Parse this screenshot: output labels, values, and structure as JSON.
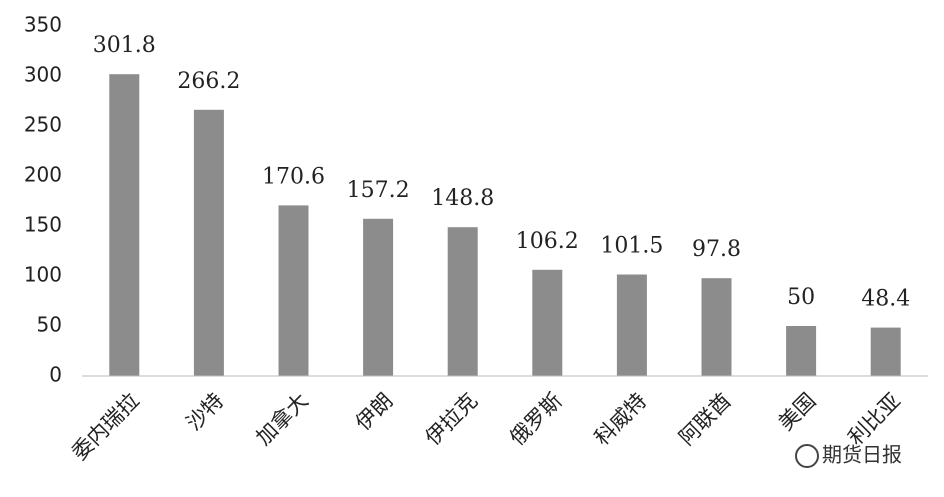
{
  "chart_data": {
    "type": "bar",
    "categories": [
      "委内瑞拉",
      "沙特",
      "加拿大",
      "伊朗",
      "伊拉克",
      "俄罗斯",
      "科威特",
      "阿联酋",
      "美国",
      "利比亚"
    ],
    "values": [
      301.8,
      266.2,
      170.6,
      157.2,
      148.8,
      106.2,
      101.5,
      97.8,
      50,
      48.4
    ],
    "color": "#8c8c8c",
    "ylim": [
      0,
      350
    ],
    "yticks": [
      0,
      50,
      100,
      150,
      200,
      250,
      300,
      350
    ],
    "grid": false
  },
  "watermark": "期货日报"
}
